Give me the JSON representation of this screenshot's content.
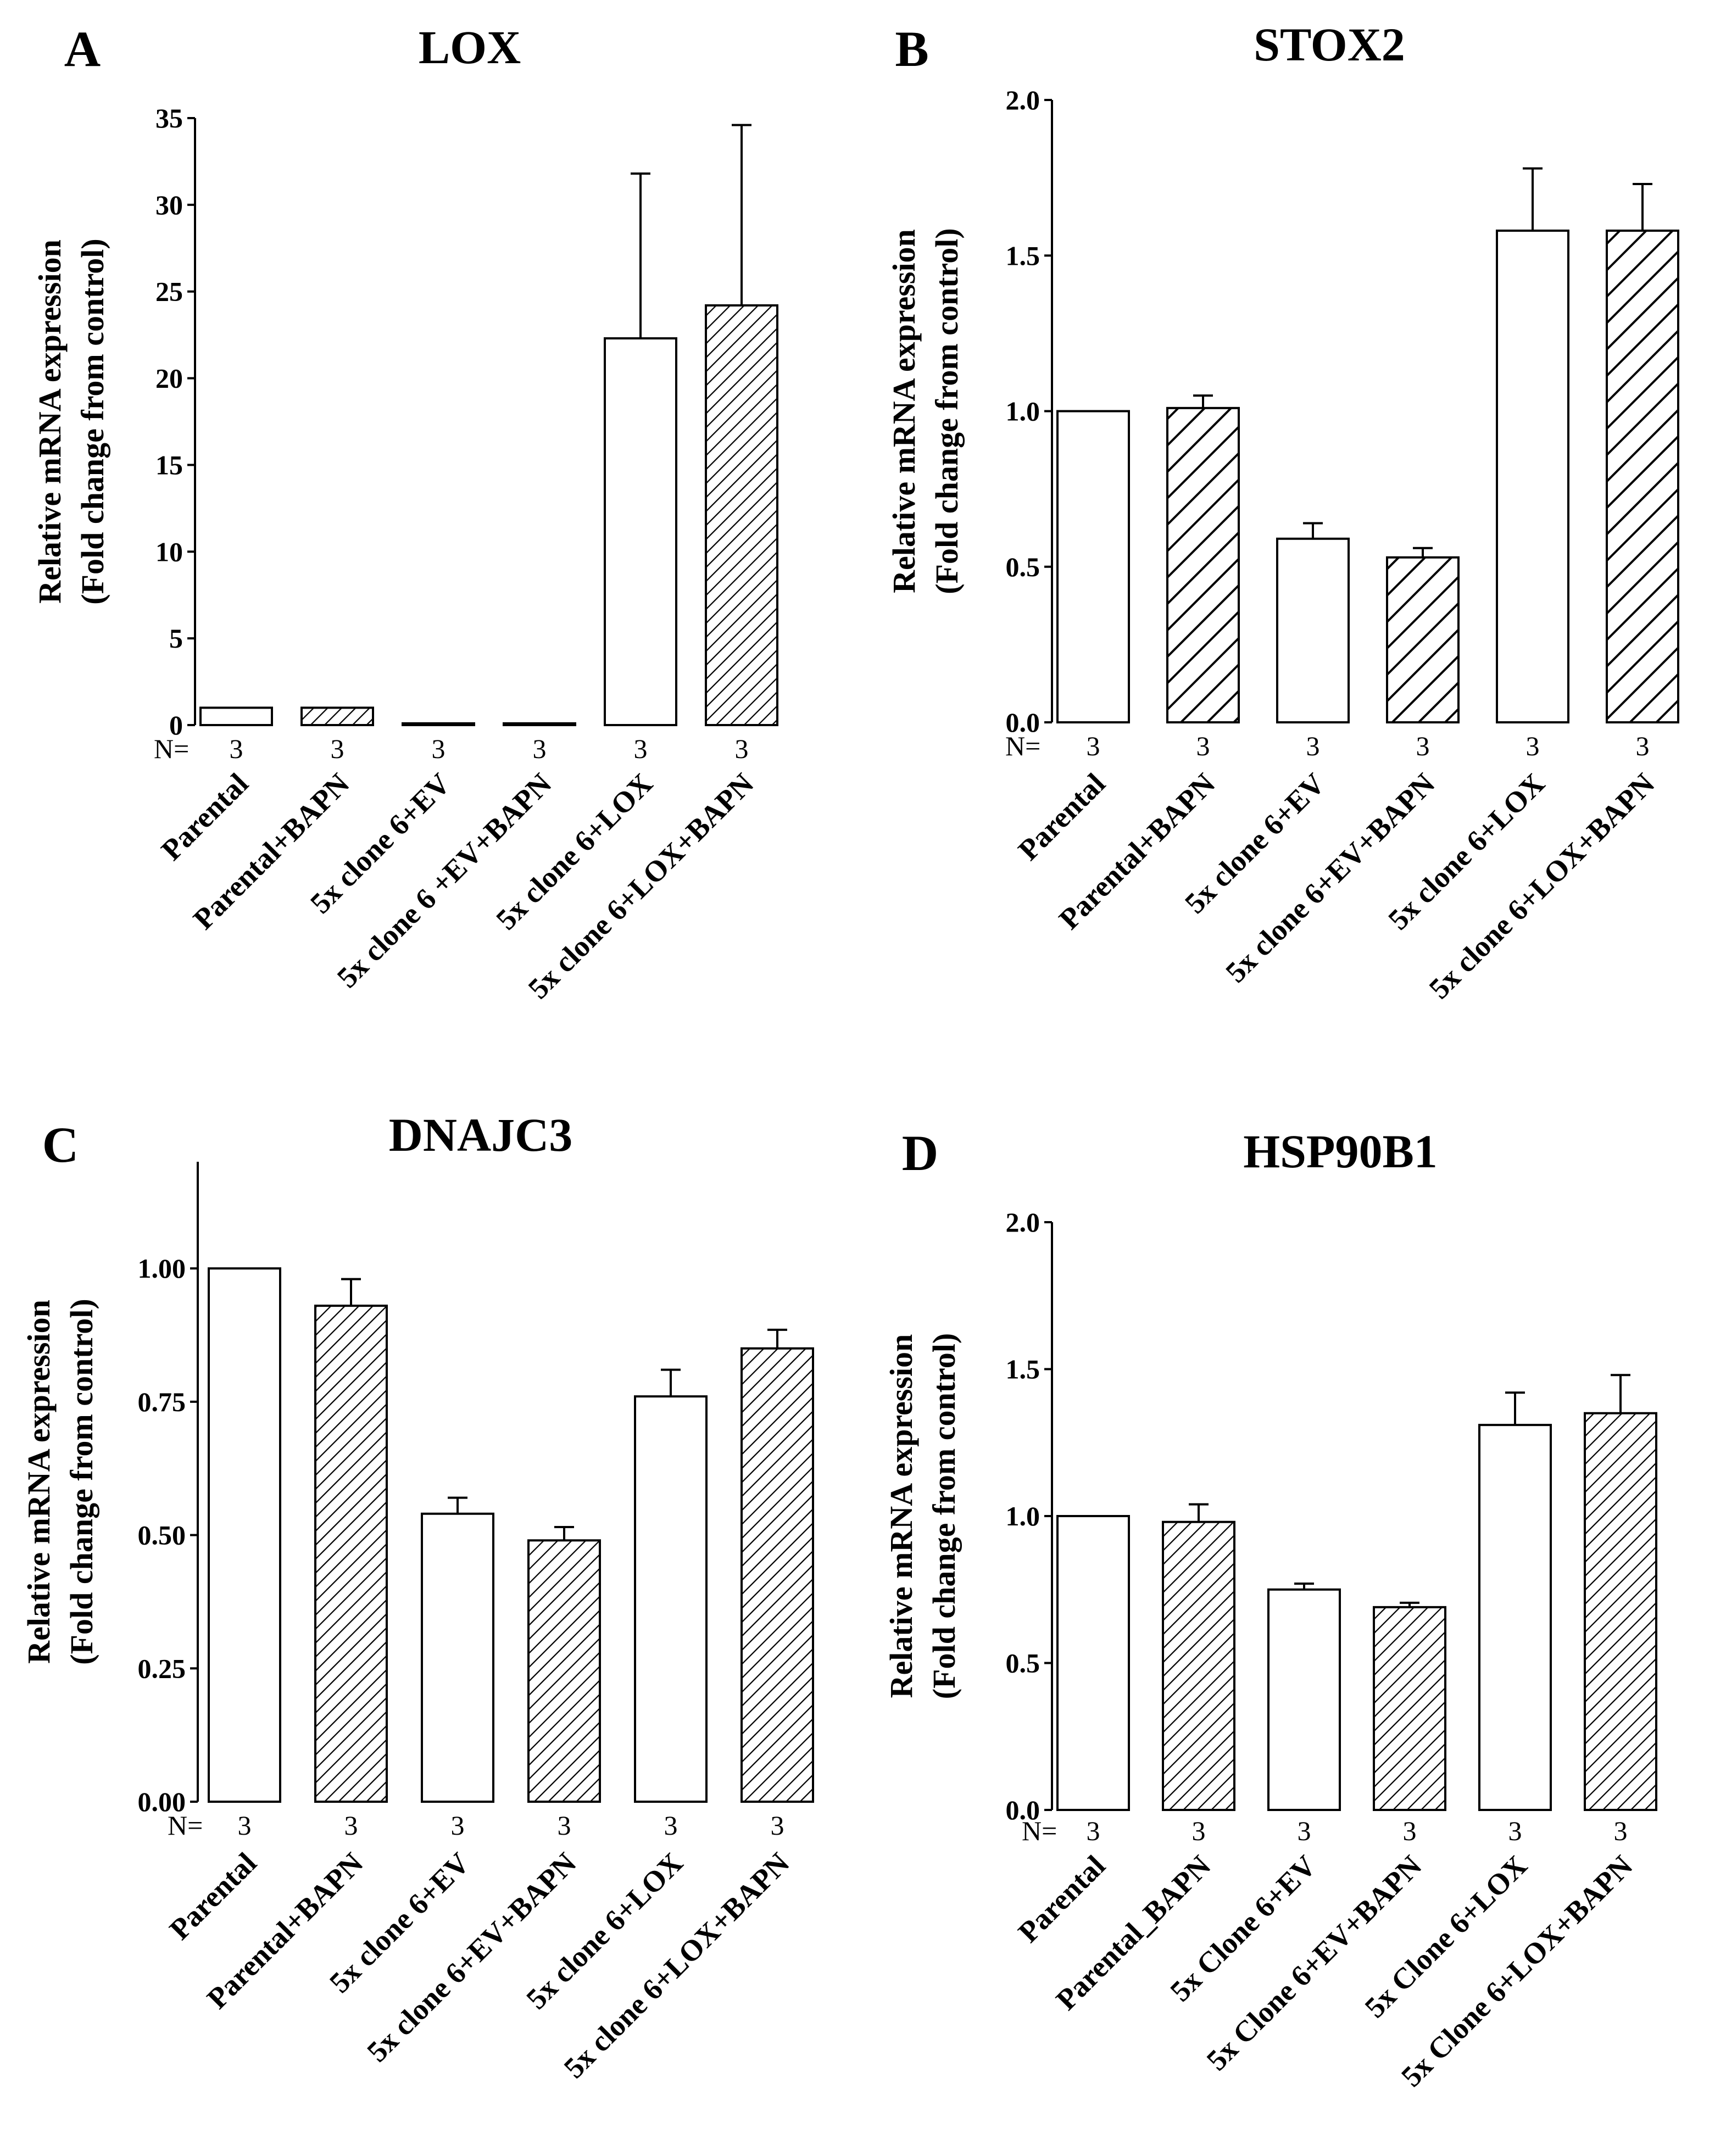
{
  "figure": {
    "n_prefix": "N="
  },
  "chart_data": [
    {
      "letter": "A",
      "type": "bar",
      "title": "LOX",
      "ylabel": [
        "Relative mRNA expression",
        "(Fold change from control)"
      ],
      "ylim": [
        0,
        35
      ],
      "yticks": [
        0,
        5,
        10,
        15,
        20,
        25,
        30,
        35
      ],
      "ytick_labels": [
        "0",
        "5",
        "10",
        "15",
        "20",
        "25",
        "30",
        "35"
      ],
      "categories": [
        "Parental",
        "Parental+BAPN",
        "5x clone 6+EV",
        "5x clone 6 +EV+BAPN",
        "5x clone 6+LOX",
        "5x clone 6+LOX+BAPN"
      ],
      "values": [
        1.0,
        1.0,
        0.1,
        0.1,
        22.3,
        24.2
      ],
      "errors": [
        0,
        0,
        0,
        0,
        9.5,
        10.4
      ],
      "n": [
        "3",
        "3",
        "3",
        "3",
        "3",
        "3"
      ],
      "patterns": [
        "none",
        "fine",
        "none",
        "fine",
        "none",
        "fine"
      ]
    },
    {
      "letter": "B",
      "type": "bar",
      "title": "STOX2",
      "ylabel": [
        "Relative mRNA expression",
        "(Fold change from control)"
      ],
      "ylim": [
        0,
        2.0
      ],
      "yticks": [
        0,
        0.5,
        1.0,
        1.5,
        2.0
      ],
      "ytick_labels": [
        "0.0",
        "0.5",
        "1.0",
        "1.5",
        "2.0"
      ],
      "categories": [
        "Parental",
        "Parental+BAPN",
        "5x clone 6+EV",
        "5x clone 6+EV+BAPN",
        "5x clone 6+LOX",
        "5x clone 6+LOX+BAPN"
      ],
      "values": [
        1.0,
        1.01,
        0.59,
        0.53,
        1.58,
        1.58
      ],
      "errors": [
        0,
        0.04,
        0.05,
        0.03,
        0.2,
        0.15
      ],
      "n": [
        "3",
        "3",
        "3",
        "3",
        "3",
        "3"
      ],
      "patterns": [
        "none",
        "coarse",
        "none",
        "coarse",
        "none",
        "coarse"
      ]
    },
    {
      "letter": "C",
      "type": "bar",
      "title": "DNAJC3",
      "ylabel": [
        "Relative mRNA expression",
        "(Fold change from control)"
      ],
      "ylim": [
        0,
        1.2
      ],
      "yticks": [
        0,
        0.25,
        0.5,
        0.75,
        1.0
      ],
      "ytick_labels": [
        "0.00",
        "0.25",
        "0.50",
        "0.75",
        "1.00"
      ],
      "categories": [
        "Parental",
        "Parental+BAPN",
        "5x clone 6+EV",
        "5x clone 6+EV+BAPN",
        "5x clone 6+LOX",
        "5x clone 6+LOX+BAPN"
      ],
      "values": [
        1.0,
        0.93,
        0.54,
        0.49,
        0.76,
        0.85
      ],
      "errors": [
        0,
        0.05,
        0.03,
        0.025,
        0.05,
        0.035
      ],
      "n": [
        "3",
        "3",
        "3",
        "3",
        "3",
        "3"
      ],
      "patterns": [
        "none",
        "fine",
        "none",
        "fine",
        "none",
        "fine"
      ]
    },
    {
      "letter": "D",
      "type": "bar",
      "title": "HSP90B1",
      "ylabel": [
        "Relative mRNA expression",
        "(Fold change from control)"
      ],
      "ylim": [
        0,
        2.0
      ],
      "yticks": [
        0,
        0.5,
        1.0,
        1.5,
        2.0
      ],
      "ytick_labels": [
        "0.0",
        "0.5",
        "1.0",
        "1.5",
        "2.0"
      ],
      "categories": [
        "Parental",
        "Parental_BAPN",
        "5x Clone 6+EV",
        "5x Clone 6+EV+BAPN",
        "5x Clone 6+LOX",
        "5x Clone 6+LOX+BAPN"
      ],
      "values": [
        1.0,
        0.98,
        0.75,
        0.69,
        1.31,
        1.35
      ],
      "errors": [
        0,
        0.06,
        0.02,
        0.015,
        0.11,
        0.13
      ],
      "n": [
        "3",
        "3",
        "3",
        "3",
        "3",
        "3"
      ],
      "patterns": [
        "none",
        "fine",
        "none",
        "fine",
        "none",
        "fine"
      ]
    }
  ]
}
